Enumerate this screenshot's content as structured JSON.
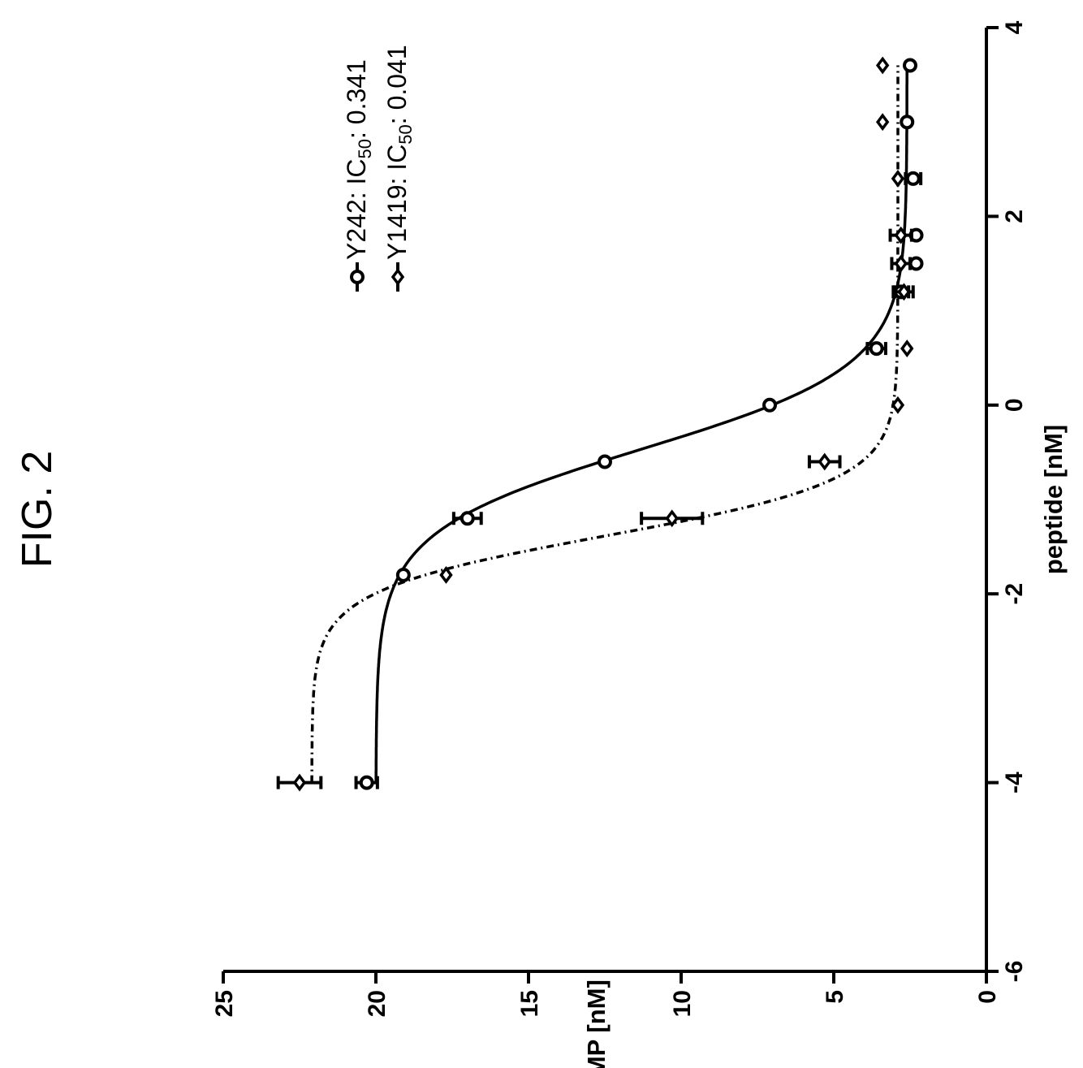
{
  "figure_label": "FIG. 2",
  "chart_data": {
    "type": "scatter",
    "title": "",
    "xlabel": "peptide [nM]",
    "ylabel": "cAMP [nM]",
    "xlim": [
      -6,
      4
    ],
    "ylim": [
      0,
      25
    ],
    "x_ticks": [
      -6,
      -4,
      -2,
      0,
      2,
      4
    ],
    "y_ticks": [
      0,
      5,
      10,
      15,
      20,
      25
    ],
    "x_tick_labels": [
      "-6",
      "-4",
      "-2",
      "0",
      "2",
      "4"
    ],
    "y_tick_labels": [
      "0",
      "5",
      "10",
      "15",
      "20",
      "25"
    ],
    "legend_placement": "top-right",
    "series": [
      {
        "name": "Y242",
        "legend_prefix": "Y242: IC",
        "legend_sub": "50",
        "legend_suffix": ": 0.341",
        "marker": "circle",
        "line_style": "solid",
        "fit": {
          "top": 20.0,
          "bottom": 2.6,
          "log_ic50": -0.467,
          "hill": 1.0
        },
        "points": [
          {
            "x": -4.0,
            "y": 20.3,
            "err": 0.35
          },
          {
            "x": -1.8,
            "y": 19.1,
            "err": 0.0
          },
          {
            "x": -1.2,
            "y": 17.0,
            "err": 0.45
          },
          {
            "x": -0.6,
            "y": 12.5,
            "err": 0.0
          },
          {
            "x": 0.0,
            "y": 7.1,
            "err": 0.0
          },
          {
            "x": 0.6,
            "y": 3.6,
            "err": 0.3
          },
          {
            "x": 1.2,
            "y": 2.8,
            "err": 0.25
          },
          {
            "x": 1.5,
            "y": 2.3,
            "err": 0.0
          },
          {
            "x": 1.8,
            "y": 2.3,
            "err": 0.0
          },
          {
            "x": 2.4,
            "y": 2.4,
            "err": 0.25
          },
          {
            "x": 3.0,
            "y": 2.6,
            "err": 0.0
          },
          {
            "x": 3.6,
            "y": 2.5,
            "err": 0.0
          }
        ]
      },
      {
        "name": "Y1419",
        "legend_prefix": "Y1419: IC",
        "legend_sub": "50",
        "legend_suffix": ": 0.041",
        "marker": "diamond",
        "line_style": "dash-dot",
        "fit": {
          "top": 22.1,
          "bottom": 2.9,
          "log_ic50": -1.387,
          "hill": 1.5
        },
        "points": [
          {
            "x": -4.0,
            "y": 22.5,
            "err": 0.7
          },
          {
            "x": -1.8,
            "y": 17.7,
            "err": 0.0
          },
          {
            "x": -1.2,
            "y": 10.3,
            "err": 1.0
          },
          {
            "x": -0.6,
            "y": 5.3,
            "err": 0.5
          },
          {
            "x": 0.0,
            "y": 2.9,
            "err": 0.0
          },
          {
            "x": 0.6,
            "y": 2.6,
            "err": 0.0
          },
          {
            "x": 1.2,
            "y": 2.7,
            "err": 0.3
          },
          {
            "x": 1.5,
            "y": 2.8,
            "err": 0.3
          },
          {
            "x": 1.8,
            "y": 2.8,
            "err": 0.35
          },
          {
            "x": 2.4,
            "y": 2.9,
            "err": 0.0
          },
          {
            "x": 3.0,
            "y": 3.4,
            "err": 0.0
          },
          {
            "x": 3.6,
            "y": 3.4,
            "err": 0.0
          }
        ]
      }
    ]
  }
}
